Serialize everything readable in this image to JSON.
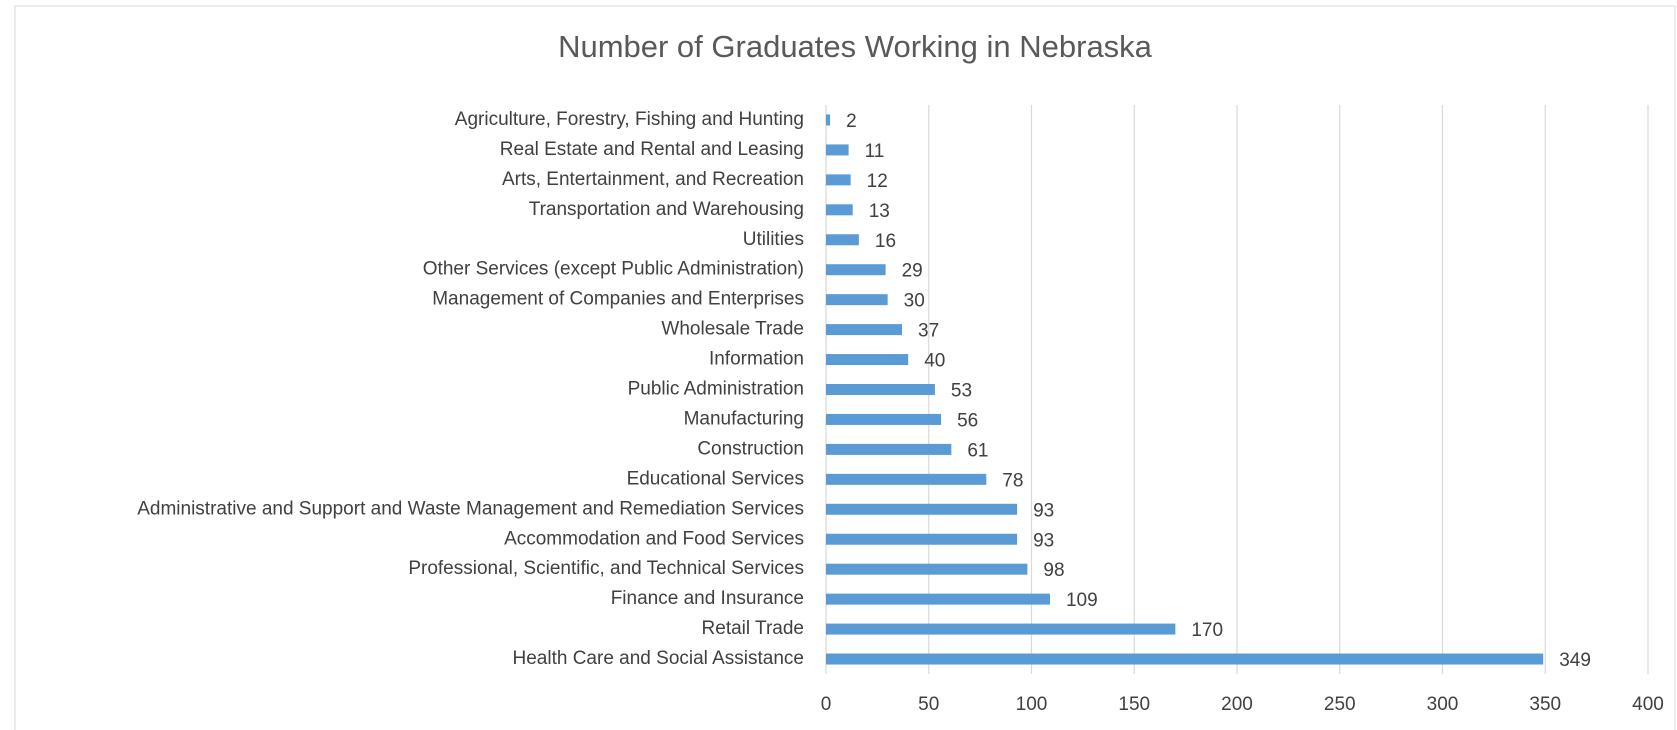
{
  "chart_data": {
    "type": "barh",
    "title": "Number of Graduates Working in Nebraska",
    "categories": [
      "Agriculture, Forestry, Fishing and Hunting",
      "Real Estate and Rental and Leasing",
      "Arts, Entertainment, and Recreation",
      "Transportation and Warehousing",
      "Utilities",
      "Other Services (except Public Administration)",
      "Management of Companies and Enterprises",
      "Wholesale Trade",
      "Information",
      "Public Administration",
      "Manufacturing",
      "Construction",
      "Educational Services",
      "Administrative and Support and Waste Management and Remediation Services",
      "Accommodation and Food Services",
      "Professional, Scientific, and Technical Services",
      "Finance and Insurance",
      "Retail Trade",
      "Health Care and Social Assistance"
    ],
    "values": [
      2,
      11,
      12,
      13,
      16,
      29,
      30,
      37,
      40,
      53,
      56,
      61,
      78,
      93,
      93,
      98,
      109,
      170,
      349
    ],
    "color": "#5b9bd5",
    "xlim": [
      0,
      400
    ],
    "xticks": [
      0,
      50,
      100,
      150,
      200,
      250,
      300,
      350,
      400
    ],
    "grid": true
  }
}
